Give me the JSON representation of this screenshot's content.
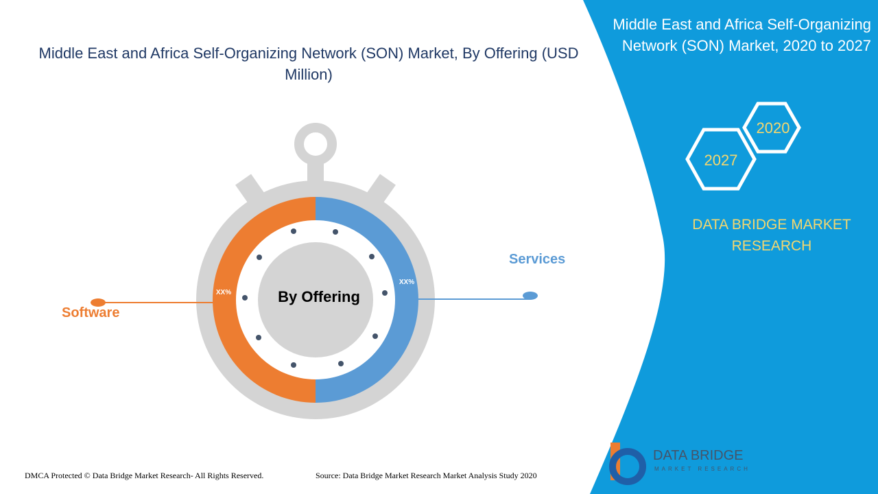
{
  "header": {
    "title": "Middle East and Africa Self-Organizing Network (SON) Market, By Offering (USD Million)"
  },
  "panel": {
    "title": "Middle East and Africa Self-Organizing Network (SON) Market, 2020 to 2027",
    "years": [
      "2020",
      "2027"
    ],
    "brand": "DATA BRIDGE MARKET RESEARCH"
  },
  "diagram": {
    "center": "By Offering",
    "segments": [
      {
        "label": "Software",
        "share": "XX%"
      },
      {
        "label": "Services",
        "share": "XX%"
      }
    ]
  },
  "logo": {
    "name": "DATA BRIDGE",
    "tagline": "MARKET RESEARCH"
  },
  "footer": {
    "copyright": "DMCA Protected © Data Bridge Market Research- All Rights Reserved.",
    "source": "Source: Data Bridge Market Research Market Analysis Study 2020"
  }
}
